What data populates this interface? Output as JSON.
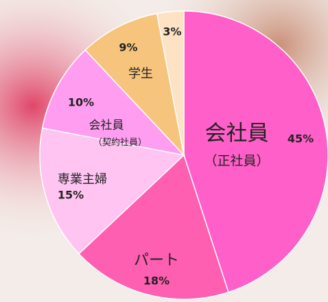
{
  "chart_data": {
    "type": "pie",
    "categories": [
      "会社員",
      "パート",
      "専業主婦",
      "会社員",
      "学生",
      null
    ],
    "sublabels": [
      "（正社員）",
      null,
      null,
      "（契約社員）",
      null,
      null
    ],
    "values": [
      45,
      18,
      15,
      10,
      9,
      3
    ],
    "value_labels": [
      "45%",
      "18%",
      "15%",
      "10%",
      "9%",
      "3%"
    ],
    "colors": [
      "#ff5fc8",
      "#ff5fb0",
      "#ffc4f2",
      "#ff9ef0",
      "#f7c47e",
      "#fde2c4"
    ]
  }
}
